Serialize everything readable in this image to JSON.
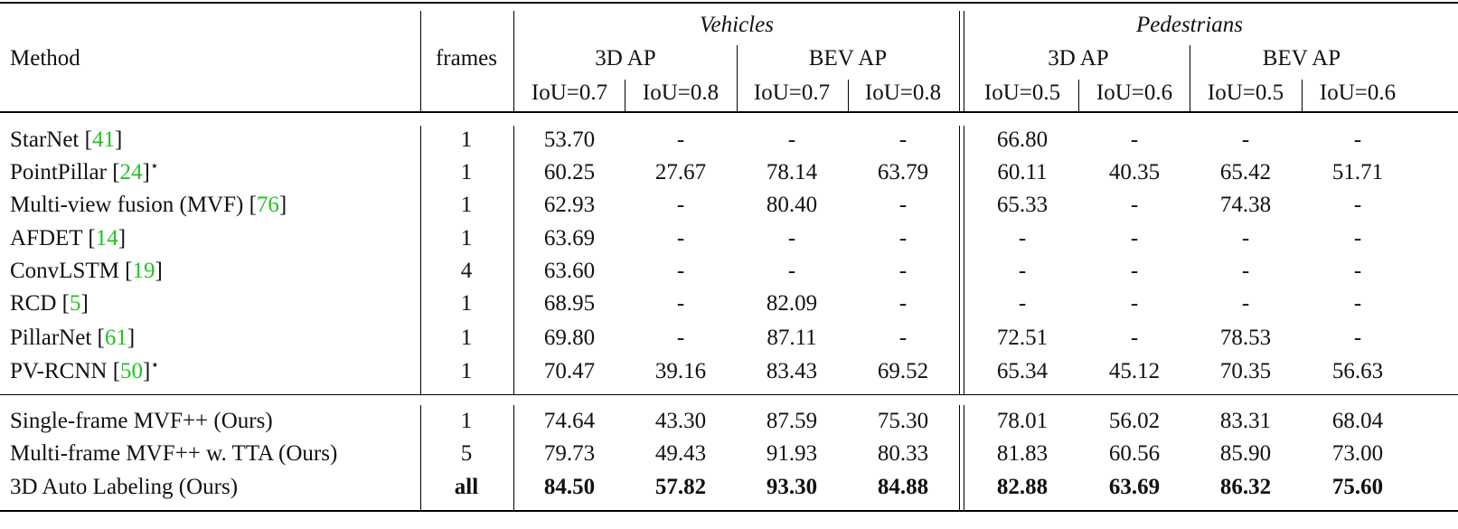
{
  "header": {
    "method": "Method",
    "frames": "frames",
    "vehicles": "Vehicles",
    "pedestrians": "Pedestrians",
    "ap_3d": "3D AP",
    "ap_bev": "BEV AP",
    "iou": [
      "IoU=0.7",
      "IoU=0.8",
      "IoU=0.7",
      "IoU=0.8",
      "IoU=0.5",
      "IoU=0.6",
      "IoU=0.5",
      "IoU=0.6"
    ]
  },
  "rows": [
    {
      "name": "StarNet [",
      "ref": "41",
      "suffix": "]",
      "star": "",
      "frames": "1",
      "v": [
        "53.70",
        "-",
        "-",
        "-",
        "66.80",
        "-",
        "-",
        "-"
      ]
    },
    {
      "name": "PointPillar [",
      "ref": "24",
      "suffix": "]",
      "star": "⋆",
      "frames": "1",
      "v": [
        "60.25",
        "27.67",
        "78.14",
        "63.79",
        "60.11",
        "40.35",
        "65.42",
        "51.71"
      ]
    },
    {
      "name": "Multi-view fusion (MVF) [",
      "ref": "76",
      "suffix": "]",
      "star": "",
      "frames": "1",
      "v": [
        "62.93",
        "-",
        "80.40",
        "-",
        "65.33",
        "-",
        "74.38",
        "-"
      ]
    },
    {
      "name": "AFDET [",
      "ref": "14",
      "suffix": "]",
      "star": "",
      "frames": "1",
      "v": [
        "63.69",
        "-",
        "-",
        "-",
        "-",
        "-",
        "-",
        "-"
      ]
    },
    {
      "name": "ConvLSTM [",
      "ref": "19",
      "suffix": "]",
      "star": "",
      "frames": "4",
      "v": [
        "63.60",
        "-",
        "-",
        "-",
        "-",
        "-",
        "-",
        "-"
      ]
    },
    {
      "name": "RCD [",
      "ref": "5",
      "suffix": "]",
      "star": "",
      "frames": "1",
      "v": [
        "68.95",
        "-",
        "82.09",
        "-",
        "-",
        "-",
        "-",
        "-"
      ]
    },
    {
      "name": "PillarNet [",
      "ref": "61",
      "suffix": "]",
      "star": "",
      "frames": "1",
      "v": [
        "69.80",
        "-",
        "87.11",
        "-",
        "72.51",
        "-",
        "78.53",
        "-"
      ]
    },
    {
      "name": "PV-RCNN [",
      "ref": "50",
      "suffix": "]",
      "star": "⋆",
      "frames": "1",
      "v": [
        "70.47",
        "39.16",
        "83.43",
        "69.52",
        "65.34",
        "45.12",
        "70.35",
        "56.63"
      ]
    },
    {
      "name": "Single-frame MVF++ (Ours)",
      "ref": "",
      "suffix": "",
      "star": "",
      "frames": "1",
      "v": [
        "74.64",
        "43.30",
        "87.59",
        "75.30",
        "78.01",
        "56.02",
        "83.31",
        "68.04"
      ]
    },
    {
      "name": "Multi-frame MVF++ w. TTA (Ours)",
      "ref": "",
      "suffix": "",
      "star": "",
      "frames": "5",
      "v": [
        "79.73",
        "49.43",
        "91.93",
        "80.33",
        "81.83",
        "60.56",
        "85.90",
        "73.00"
      ]
    },
    {
      "name": "3D Auto Labeling (Ours)",
      "ref": "",
      "suffix": "",
      "star": "",
      "frames": "all",
      "bold": true,
      "v": [
        "84.50",
        "57.82",
        "93.30",
        "84.88",
        "82.88",
        "63.69",
        "86.32",
        "75.60"
      ]
    }
  ]
}
